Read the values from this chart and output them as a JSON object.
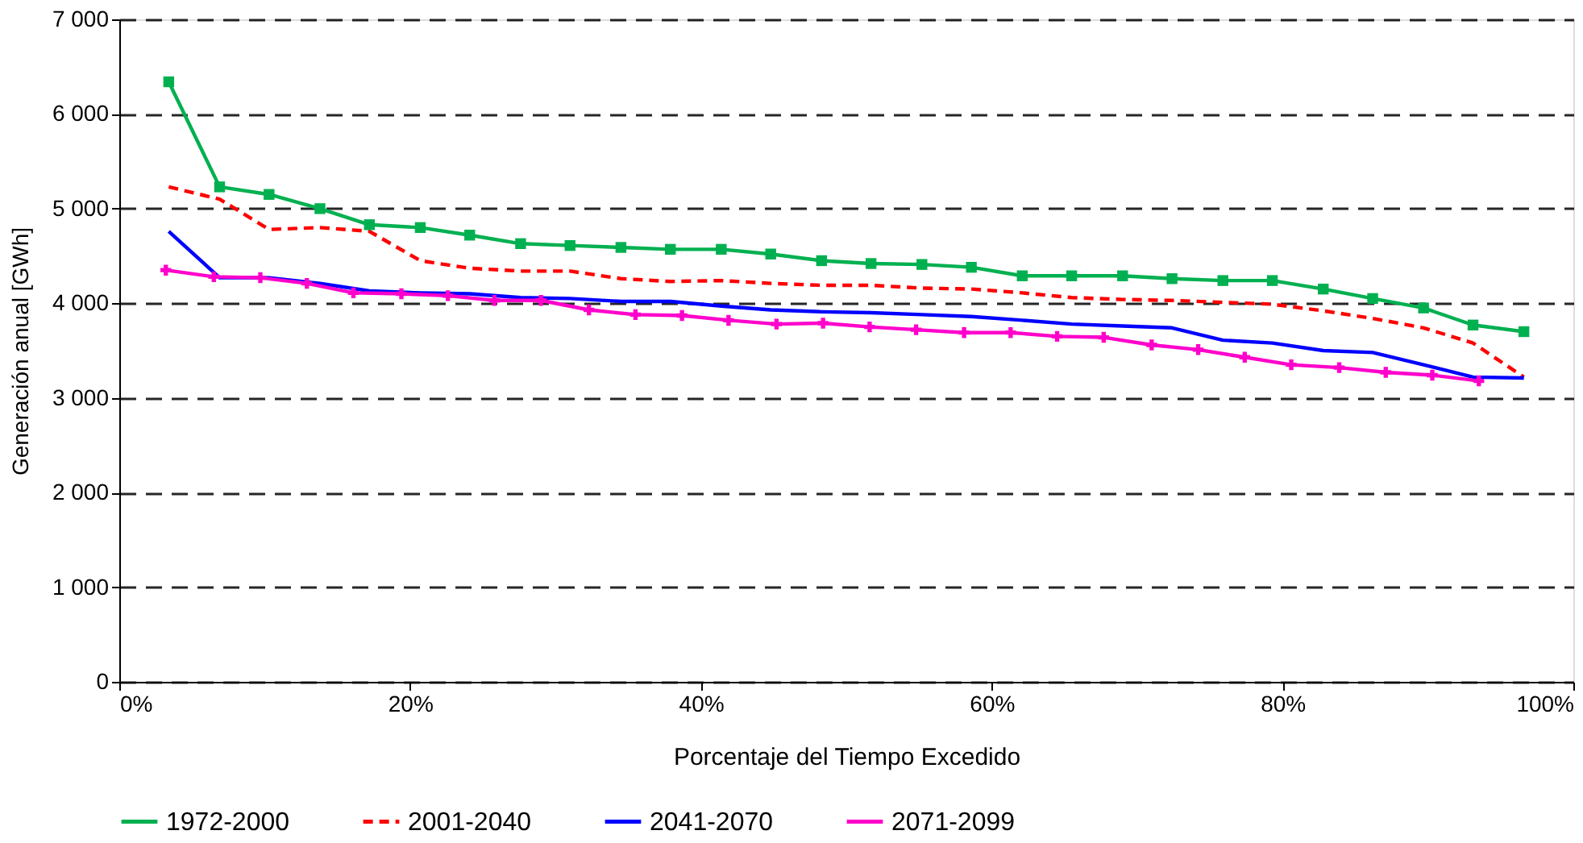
{
  "chart_data": {
    "type": "line",
    "xlabel": "Porcentaje del Tiempo  Excedido",
    "ylabel": "Generación anual [GWh]",
    "xlim": [
      0,
      100
    ],
    "xticks": [
      {
        "value": 0,
        "label": "0%"
      },
      {
        "value": 20,
        "label": "20%"
      },
      {
        "value": 40,
        "label": "40%"
      },
      {
        "value": 60,
        "label": "60%"
      },
      {
        "value": 80,
        "label": "80%"
      },
      {
        "value": 100,
        "label": "100%"
      }
    ],
    "ylim": [
      0,
      7000
    ],
    "yticks": [
      0,
      {
        "value": 1000,
        "label": "1 000"
      },
      {
        "value": 2000,
        "label": "2 000"
      },
      {
        "value": 3000,
        "label": "3 000"
      },
      {
        "value": 4000,
        "label": "4 000"
      },
      {
        "value": 5000,
        "label": "5 000"
      },
      {
        "value": 6000,
        "label": "6 000"
      },
      {
        "value": 7000,
        "label": "7 000"
      }
    ],
    "grid": "y",
    "legend": "bottom",
    "series": [
      {
        "name": "1972-2000",
        "color": "#00b050",
        "marker": "square",
        "line_style": "solid",
        "x": [
          3.4,
          6.9,
          10.3,
          13.8,
          17.2,
          20.7,
          24.1,
          27.6,
          31.0,
          34.5,
          37.9,
          41.4,
          44.8,
          48.3,
          51.7,
          55.2,
          58.6,
          62.1,
          65.5,
          69.0,
          72.4,
          75.9,
          79.3,
          82.8,
          86.2,
          89.7,
          93.1,
          96.6
        ],
        "values": [
          6340,
          5230,
          5150,
          5000,
          4830,
          4800,
          4720,
          4630,
          4610,
          4590,
          4570,
          4570,
          4520,
          4450,
          4420,
          4410,
          4380,
          4290,
          4290,
          4290,
          4260,
          4240,
          4240,
          4150,
          4050,
          3950,
          3770,
          3700
        ]
      },
      {
        "name": "2001-2040",
        "color": "#ff0000",
        "marker": "none",
        "line_style": "dashed",
        "x": [
          3.4,
          6.9,
          10.3,
          13.8,
          17.2,
          20.7,
          24.1,
          27.6,
          31.0,
          34.5,
          37.9,
          41.4,
          44.8,
          48.3,
          51.7,
          55.2,
          58.6,
          62.1,
          65.5,
          69.0,
          72.4,
          75.9,
          79.3,
          82.8,
          86.2,
          89.7,
          93.1,
          96.6
        ],
        "values": [
          5230,
          5100,
          4780,
          4800,
          4760,
          4450,
          4370,
          4340,
          4340,
          4260,
          4230,
          4240,
          4210,
          4190,
          4190,
          4160,
          4150,
          4110,
          4060,
          4040,
          4030,
          4010,
          3990,
          3920,
          3840,
          3740,
          3580,
          3220
        ]
      },
      {
        "name": "2041-2070",
        "color": "#0000ff",
        "marker": "none",
        "line_style": "solid",
        "x": [
          3.4,
          6.9,
          10.3,
          13.8,
          17.2,
          20.7,
          24.1,
          27.6,
          31.0,
          34.5,
          37.9,
          41.4,
          44.8,
          48.3,
          51.7,
          55.2,
          58.6,
          62.1,
          65.5,
          69.0,
          72.4,
          75.9,
          79.3,
          82.8,
          86.2,
          89.7,
          93.1,
          96.6
        ],
        "values": [
          4760,
          4270,
          4270,
          4210,
          4130,
          4110,
          4100,
          4060,
          4050,
          4020,
          4020,
          3970,
          3930,
          3910,
          3900,
          3880,
          3860,
          3820,
          3780,
          3760,
          3740,
          3610,
          3580,
          3500,
          3480,
          3350,
          3220,
          3210
        ]
      },
      {
        "name": "2071-2099",
        "color": "#ff00cc",
        "marker": "cross",
        "line_style": "solid",
        "x": [
          3.2,
          6.5,
          9.7,
          12.9,
          16.1,
          19.4,
          22.6,
          25.8,
          29.0,
          32.3,
          35.5,
          38.7,
          41.9,
          45.2,
          48.4,
          51.6,
          54.8,
          58.1,
          61.3,
          64.5,
          67.7,
          71.0,
          74.2,
          77.4,
          80.6,
          83.9,
          87.1,
          90.3,
          93.5
        ],
        "values": [
          4350,
          4280,
          4270,
          4210,
          4110,
          4100,
          4080,
          4030,
          4030,
          3930,
          3880,
          3870,
          3820,
          3780,
          3790,
          3750,
          3720,
          3690,
          3690,
          3650,
          3640,
          3560,
          3510,
          3430,
          3350,
          3320,
          3270,
          3240,
          3180
        ]
      }
    ]
  }
}
